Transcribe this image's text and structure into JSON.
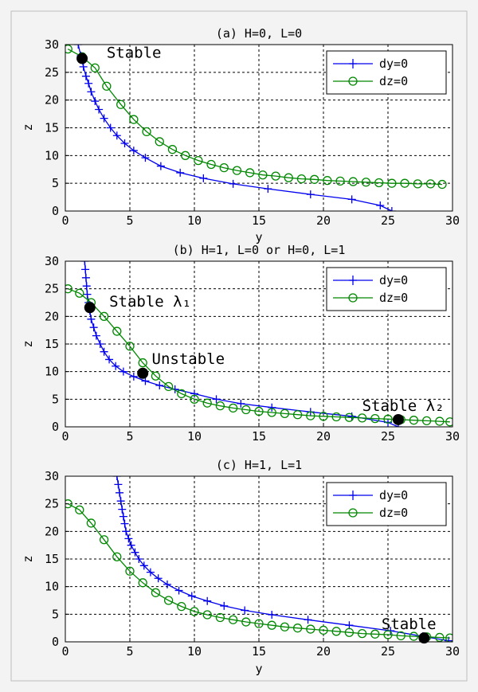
{
  "chart_data": [
    {
      "type": "line",
      "title": "(a) H=0, L=0",
      "xlabel": "y",
      "ylabel": "z",
      "xlim": [
        0,
        30
      ],
      "ylim": [
        0,
        30
      ],
      "xticks": [
        "0",
        "5",
        "10",
        "15",
        "20",
        "25",
        "30"
      ],
      "yticks": [
        "0",
        "5",
        "10",
        "15",
        "20",
        "25",
        "30"
      ],
      "grid": true,
      "legend": "top-right",
      "series": [
        {
          "name": "dy=0",
          "color": "#0000ee",
          "marker": "plus",
          "x": [
            1.0,
            1.2,
            1.4,
            1.6,
            1.8,
            2.0,
            2.3,
            2.6,
            3.0,
            3.5,
            4.0,
            4.6,
            5.3,
            6.2,
            7.4,
            8.9,
            10.7,
            13.0,
            15.7,
            19.0,
            22.2,
            24.4,
            25.3
          ],
          "y": [
            30,
            28,
            26,
            24.3,
            23,
            21.5,
            19.8,
            18.3,
            16.7,
            15.0,
            13.6,
            12.2,
            10.9,
            9.6,
            8.1,
            6.9,
            5.9,
            4.9,
            4.0,
            3.0,
            2.1,
            1.0,
            0
          ]
        },
        {
          "name": "dz=0",
          "color": "#008800",
          "marker": "circle",
          "x": [
            0.2,
            1.3,
            2.3,
            3.2,
            4.3,
            5.3,
            6.3,
            7.3,
            8.3,
            9.3,
            10.3,
            11.3,
            12.3,
            13.3,
            14.3,
            15.3,
            16.3,
            17.3,
            18.3,
            19.3,
            20.3,
            21.3,
            22.3,
            23.3,
            24.3,
            25.3,
            26.3,
            27.3,
            28.3,
            29.2
          ],
          "y": [
            29.2,
            27.8,
            25.8,
            22.5,
            19.2,
            16.5,
            14.3,
            12.5,
            11.1,
            10.0,
            9.1,
            8.4,
            7.8,
            7.3,
            6.9,
            6.5,
            6.3,
            6.0,
            5.8,
            5.7,
            5.5,
            5.4,
            5.3,
            5.2,
            5.1,
            5.0,
            5.0,
            4.9,
            4.9,
            4.8
          ]
        }
      ],
      "annotations": [
        {
          "text": "Stable",
          "x": 3.2,
          "y": 27.6
        }
      ],
      "points": [
        {
          "x": 1.3,
          "y": 27.5
        }
      ]
    },
    {
      "type": "line",
      "title": "(b) H=1, L=0 or H=0, L=1",
      "xlabel": "",
      "ylabel": "z",
      "xlim": [
        0,
        30
      ],
      "ylim": [
        0,
        30
      ],
      "xticks": [
        "0",
        "5",
        "10",
        "15",
        "20",
        "25",
        "30"
      ],
      "yticks": [
        "0",
        "5",
        "10",
        "15",
        "20",
        "25",
        "30"
      ],
      "grid": true,
      "legend": "top-right",
      "series": [
        {
          "name": "dy=0",
          "color": "#0000ee",
          "marker": "plus",
          "x": [
            1.5,
            1.55,
            1.6,
            1.65,
            1.7,
            1.8,
            1.9,
            2.0,
            2.2,
            2.4,
            2.7,
            3.0,
            3.4,
            3.9,
            4.5,
            5.3,
            6.2,
            7.3,
            8.5,
            10.0,
            11.7,
            13.6,
            16.0,
            19.0,
            22.2,
            25.0,
            25.8
          ],
          "y": [
            30,
            28.5,
            27,
            25.5,
            24,
            22.5,
            21,
            19.5,
            18,
            16.5,
            15,
            13.6,
            12.2,
            11.0,
            10.0,
            9.1,
            8.3,
            7.5,
            6.8,
            6.0,
            5.0,
            4.2,
            3.5,
            2.7,
            1.9,
            0.8,
            0
          ]
        },
        {
          "name": "dz=0",
          "color": "#008800",
          "marker": "circle",
          "x": [
            0.2,
            1.1,
            2.0,
            3.0,
            4.0,
            5.0,
            6.0,
            7.0,
            8.0,
            9.0,
            10.0,
            11.0,
            12.0,
            13.0,
            14.0,
            15.0,
            16.0,
            17.0,
            18.0,
            19.0,
            20.0,
            21.0,
            22.0,
            23.0,
            24.0,
            25.0,
            26.0,
            27.0,
            28.0,
            29.0,
            29.8
          ],
          "y": [
            25,
            24.2,
            22.5,
            20.0,
            17.3,
            14.6,
            11.6,
            9.2,
            7.3,
            6.0,
            5.0,
            4.3,
            3.8,
            3.4,
            3.1,
            2.8,
            2.6,
            2.4,
            2.2,
            2.0,
            1.9,
            1.8,
            1.7,
            1.6,
            1.5,
            1.4,
            1.3,
            1.2,
            1.1,
            1.0,
            0.9
          ]
        }
      ],
      "annotations": [
        {
          "text": "Stable λ₁",
          "x": 3.4,
          "y": 21.8
        },
        {
          "text": "Unstable",
          "x": 6.7,
          "y": 11.4
        },
        {
          "text": "Stable λ₂",
          "x": 23.0,
          "y": 2.9
        }
      ],
      "points": [
        {
          "x": 1.9,
          "y": 21.6
        },
        {
          "x": 6.0,
          "y": 9.7
        },
        {
          "x": 25.8,
          "y": 1.3
        }
      ]
    },
    {
      "type": "line",
      "title": "(c) H=1, L=1",
      "xlabel": "y",
      "ylabel": "z",
      "xlim": [
        0,
        30
      ],
      "ylim": [
        0,
        30
      ],
      "xticks": [
        "0",
        "5",
        "10",
        "15",
        "20",
        "25",
        "30"
      ],
      "yticks": [
        "0",
        "5",
        "10",
        "15",
        "20",
        "25",
        "30"
      ],
      "grid": true,
      "legend": "top-right",
      "series": [
        {
          "name": "dy=0",
          "color": "#0000ee",
          "marker": "plus",
          "x": [
            4.0,
            4.1,
            4.2,
            4.3,
            4.4,
            4.5,
            4.6,
            4.7,
            4.9,
            5.1,
            5.4,
            5.7,
            6.1,
            6.6,
            7.2,
            7.9,
            8.8,
            9.8,
            11.0,
            12.3,
            13.9,
            16.0,
            18.8,
            22.0,
            25.2,
            27.7,
            29.7
          ],
          "y": [
            30,
            28.5,
            27,
            25.5,
            24,
            22.7,
            21.4,
            20,
            18.7,
            17.5,
            16.2,
            15.0,
            13.8,
            12.6,
            11.5,
            10.4,
            9.3,
            8.3,
            7.4,
            6.5,
            5.7,
            4.9,
            4.0,
            3.0,
            2.0,
            1.0,
            0.2
          ]
        },
        {
          "name": "dz=0",
          "color": "#008800",
          "marker": "circle",
          "x": [
            0.2,
            1.1,
            2.0,
            3.0,
            4.0,
            5.0,
            6.0,
            7.0,
            8.0,
            9.0,
            10.0,
            11.0,
            12.0,
            13.0,
            14.0,
            15.0,
            16.0,
            17.0,
            18.0,
            19.0,
            20.0,
            21.0,
            22.0,
            23.0,
            24.0,
            25.0,
            26.0,
            27.0,
            28.0,
            29.0,
            29.8
          ],
          "y": [
            25,
            23.9,
            21.5,
            18.5,
            15.4,
            12.8,
            10.7,
            8.9,
            7.5,
            6.4,
            5.5,
            4.9,
            4.4,
            4.0,
            3.6,
            3.3,
            3.0,
            2.7,
            2.5,
            2.3,
            2.1,
            1.9,
            1.7,
            1.5,
            1.4,
            1.3,
            1.1,
            1.0,
            0.9,
            0.8,
            0.7
          ]
        }
      ],
      "annotations": [
        {
          "text": "Stable",
          "x": 24.5,
          "y": 2.3
        }
      ],
      "points": [
        {
          "x": 27.8,
          "y": 0.7
        }
      ]
    }
  ]
}
